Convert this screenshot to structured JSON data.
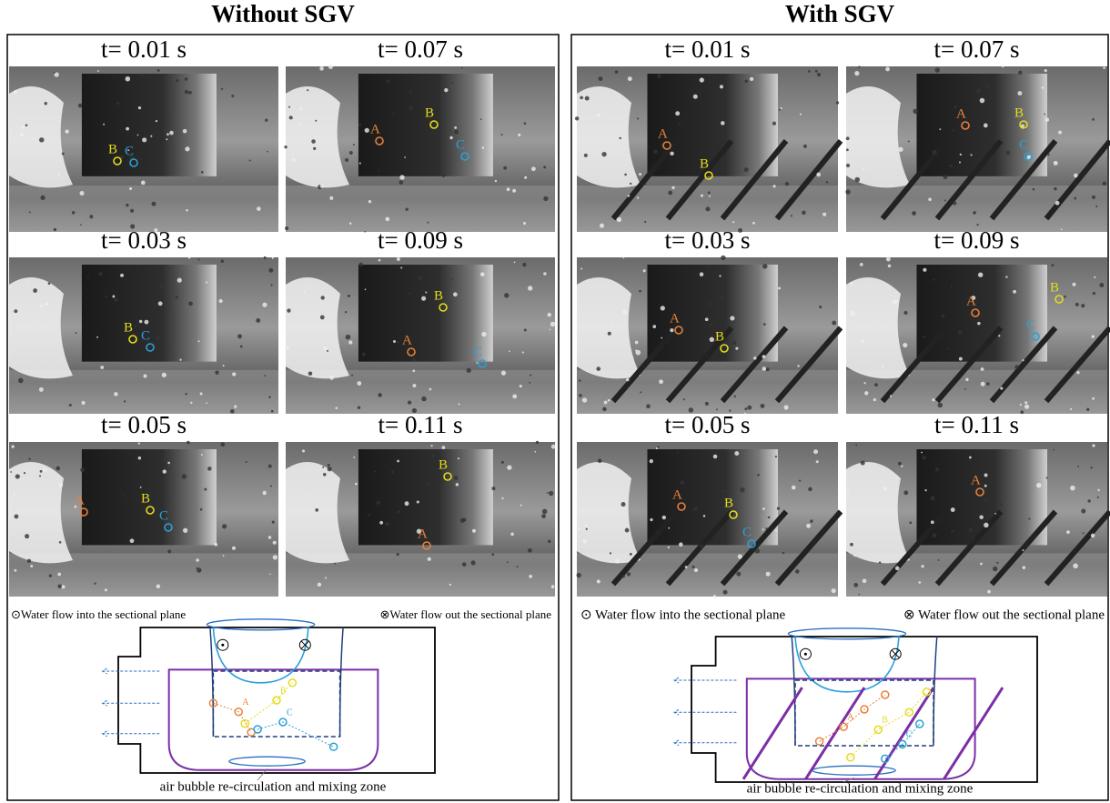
{
  "panels": [
    {
      "title": "Without SGV",
      "frames": [
        {
          "time": "t= 0.01 s",
          "markers": [
            "B",
            "C"
          ]
        },
        {
          "time": "t= 0.07 s",
          "markers": [
            "A",
            "B",
            "C"
          ]
        },
        {
          "time": "t= 0.03 s",
          "markers": [
            "B",
            "C"
          ]
        },
        {
          "time": "t= 0.09 s",
          "markers": [
            "B",
            "A",
            "C"
          ]
        },
        {
          "time": "t= 0.05 s",
          "markers": [
            "A",
            "B",
            "C"
          ]
        },
        {
          "time": "t= 0.11 s",
          "markers": [
            "B",
            "A"
          ]
        }
      ],
      "legend_in": "⊙Water flow into the sectional plane",
      "legend_out": "⊗Water flow out the sectional plane",
      "diagram_labels": [
        "A",
        "B",
        "C"
      ],
      "caption": "air bubble re-circulation and mixing zone"
    },
    {
      "title": "With SGV",
      "frames": [
        {
          "time": "t= 0.01 s",
          "markers": [
            "A",
            "B"
          ]
        },
        {
          "time": "t= 0.07 s",
          "markers": [
            "A",
            "B",
            "C"
          ]
        },
        {
          "time": "t= 0.03 s",
          "markers": [
            "A",
            "B"
          ]
        },
        {
          "time": "t= 0.09 s",
          "markers": [
            "A",
            "B",
            "C"
          ]
        },
        {
          "time": "t= 0.05 s",
          "markers": [
            "A",
            "B",
            "C"
          ]
        },
        {
          "time": "t= 0.11 s",
          "markers": [
            "A"
          ]
        }
      ],
      "legend_in": "⊙ Water flow into the sectional plane",
      "legend_out": "⊗ Water flow out the sectional plane",
      "diagram_labels": [
        "A",
        "B",
        "C"
      ],
      "caption": "air bubble re-circulation and mixing zone"
    }
  ]
}
